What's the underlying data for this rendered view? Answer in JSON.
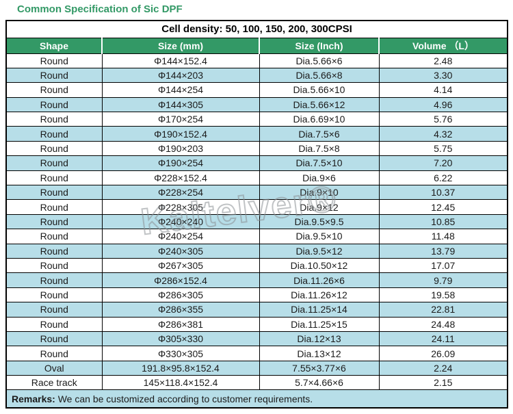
{
  "title": "Common Specification of Sic DPF",
  "watermark": "Kaitelver®",
  "colors": {
    "title_green": "#339966",
    "header_green": "#339966",
    "row_blue": "#b7dee8",
    "border_black": "#000000"
  },
  "table": {
    "cell_density": "Cell density: 50, 100, 150, 200, 300CPSI",
    "columns": [
      "Shape",
      "Size (mm)",
      "Size (Inch)",
      "Volume （L）"
    ],
    "rows": [
      {
        "shape": "Round",
        "size_mm": "Φ144×152.4",
        "size_inch": "Dia.5.66×6",
        "volume": "2.48"
      },
      {
        "shape": "Round",
        "size_mm": "Φ144×203",
        "size_inch": "Dia.5.66×8",
        "volume": "3.30"
      },
      {
        "shape": "Round",
        "size_mm": "Φ144×254",
        "size_inch": "Dia.5.66×10",
        "volume": "4.14"
      },
      {
        "shape": "Round",
        "size_mm": "Φ144×305",
        "size_inch": "Dia.5.66×12",
        "volume": "4.96"
      },
      {
        "shape": "Round",
        "size_mm": "Φ170×254",
        "size_inch": "Dia.6.69×10",
        "volume": "5.76"
      },
      {
        "shape": "Round",
        "size_mm": "Φ190×152.4",
        "size_inch": "Dia.7.5×6",
        "volume": "4.32"
      },
      {
        "shape": "Round",
        "size_mm": "Φ190×203",
        "size_inch": "Dia.7.5×8",
        "volume": "5.75"
      },
      {
        "shape": "Round",
        "size_mm": "Φ190×254",
        "size_inch": "Dia.7.5×10",
        "volume": "7.20"
      },
      {
        "shape": "Round",
        "size_mm": "Φ228×152.4",
        "size_inch": "Dia.9×6",
        "volume": "6.22"
      },
      {
        "shape": "Round",
        "size_mm": "Φ228×254",
        "size_inch": "Dia.9×10",
        "volume": "10.37"
      },
      {
        "shape": "Round",
        "size_mm": "Φ228×305",
        "size_inch": "Dia.9×12",
        "volume": "12.45"
      },
      {
        "shape": "Round",
        "size_mm": "Φ240×240",
        "size_inch": "Dia.9.5×9.5",
        "volume": "10.85"
      },
      {
        "shape": "Round",
        "size_mm": "Φ240×254",
        "size_inch": "Dia.9.5×10",
        "volume": "11.48"
      },
      {
        "shape": "Round",
        "size_mm": "Φ240×305",
        "size_inch": "Dia.9.5×12",
        "volume": "13.79"
      },
      {
        "shape": "Round",
        "size_mm": "Φ267×305",
        "size_inch": "Dia.10.50×12",
        "volume": "17.07"
      },
      {
        "shape": "Round",
        "size_mm": "Φ286×152.4",
        "size_inch": "Dia.11.26×6",
        "volume": "9.79"
      },
      {
        "shape": "Round",
        "size_mm": "Φ286×305",
        "size_inch": "Dia.11.26×12",
        "volume": "19.58"
      },
      {
        "shape": "Round",
        "size_mm": "Φ286×355",
        "size_inch": "Dia.11.25×14",
        "volume": "22.81"
      },
      {
        "shape": "Round",
        "size_mm": "Φ286×381",
        "size_inch": "Dia.11.25×15",
        "volume": "24.48"
      },
      {
        "shape": "Round",
        "size_mm": "Φ305×330",
        "size_inch": "Dia.12×13",
        "volume": "24.11"
      },
      {
        "shape": "Round",
        "size_mm": "Φ330×305",
        "size_inch": "Dia.13×12",
        "volume": "26.09"
      },
      {
        "shape": "Oval",
        "size_mm": "191.8×95.8×152.4",
        "size_inch": "7.55×3.77×6",
        "volume": "2.24"
      },
      {
        "shape": "Race track",
        "size_mm": "145×118.4×152.4",
        "size_inch": "5.7×4.66×6",
        "volume": "2.15"
      }
    ],
    "remarks_label": "Remarks:",
    "remarks_text": " We can be customized according to customer requirements."
  }
}
